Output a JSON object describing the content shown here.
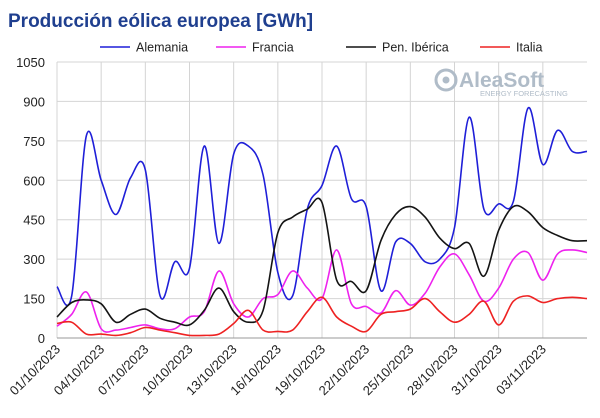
{
  "chart_data": {
    "type": "line",
    "title": "Producción eólica europea [GWh]",
    "title_color": "#1f3f8f",
    "xlabel": "",
    "ylabel": "",
    "ylim": [
      0,
      1050
    ],
    "yticks": [
      0,
      150,
      300,
      450,
      600,
      750,
      900,
      1050
    ],
    "x_tick_labels": [
      "01/10/2023",
      "04/10/2023",
      "07/10/2023",
      "10/10/2023",
      "13/10/2023",
      "16/10/2023",
      "19/10/2023",
      "22/10/2023",
      "25/10/2023",
      "28/10/2023",
      "31/10/2023",
      "03/11/2023"
    ],
    "x_tick_positions": [
      0,
      3,
      6,
      9,
      12,
      15,
      18,
      21,
      24,
      27,
      30,
      33
    ],
    "grid": true,
    "legend_position": "top",
    "x": [
      0,
      1,
      2,
      3,
      4,
      5,
      6,
      7,
      8,
      9,
      10,
      11,
      12,
      13,
      14,
      15,
      16,
      17,
      18,
      19,
      20,
      21,
      22,
      23,
      24,
      25,
      26,
      27,
      28,
      29,
      30,
      31,
      32,
      33,
      34,
      35,
      36
    ],
    "series": [
      {
        "name": "Alemania",
        "color": "#1f1fd8",
        "values": [
          195,
          160,
          770,
          600,
          470,
          610,
          640,
          160,
          290,
          265,
          730,
          360,
          700,
          730,
          620,
          250,
          160,
          490,
          580,
          730,
          530,
          500,
          180,
          365,
          360,
          290,
          300,
          420,
          840,
          490,
          510,
          520,
          875,
          660,
          790,
          710,
          710
        ]
      },
      {
        "name": "Francia",
        "color": "#ee22ee",
        "values": [
          45,
          90,
          175,
          35,
          30,
          40,
          50,
          35,
          35,
          80,
          100,
          255,
          130,
          80,
          150,
          165,
          255,
          190,
          150,
          335,
          130,
          120,
          95,
          180,
          125,
          170,
          270,
          320,
          240,
          140,
          190,
          300,
          325,
          220,
          320,
          335,
          325
        ]
      },
      {
        "name": "Pen. Ibérica",
        "color": "#141414",
        "values": [
          80,
          135,
          145,
          130,
          60,
          90,
          110,
          75,
          60,
          50,
          105,
          190,
          100,
          60,
          105,
          400,
          460,
          490,
          515,
          220,
          215,
          180,
          370,
          470,
          500,
          460,
          380,
          340,
          360,
          235,
          410,
          500,
          480,
          420,
          390,
          370,
          370
        ]
      },
      {
        "name": "Italia",
        "color": "#ee2222",
        "values": [
          55,
          60,
          15,
          15,
          10,
          20,
          40,
          30,
          20,
          10,
          10,
          15,
          55,
          105,
          30,
          25,
          30,
          100,
          155,
          80,
          45,
          25,
          90,
          100,
          110,
          150,
          100,
          60,
          90,
          140,
          50,
          140,
          160,
          135,
          150,
          155,
          150
        ]
      }
    ],
    "watermark": {
      "brand": "AleaSoft",
      "subtitle": "ENERGY FORECASTING"
    }
  }
}
